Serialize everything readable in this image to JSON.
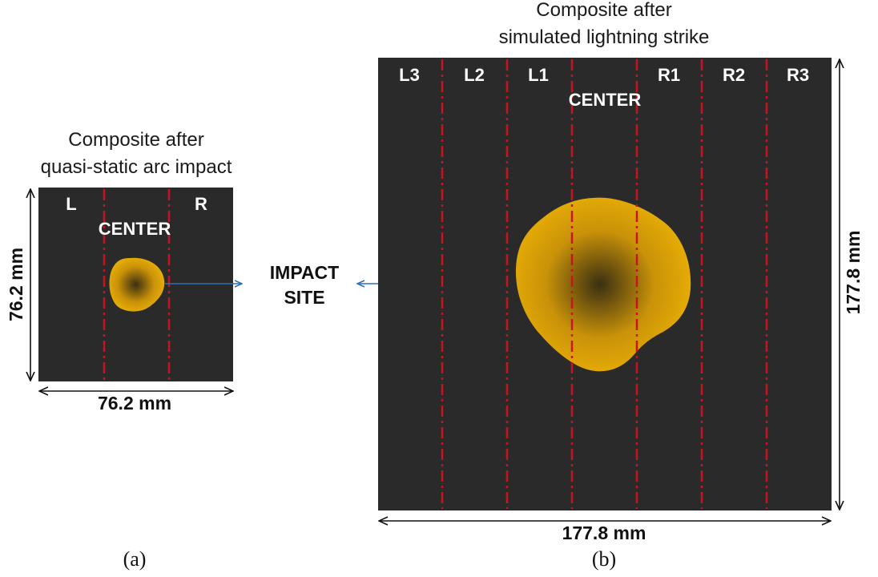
{
  "panel_a": {
    "title_line1": "Composite after",
    "title_line2": "quasi-static arc impact",
    "zones": {
      "left": "L",
      "right": "R",
      "center": "CENTER"
    },
    "width_label": "76.2 mm",
    "height_label": "76.2 mm",
    "caption": "(a)"
  },
  "panel_b": {
    "title_line1": "Composite after",
    "title_line2": "simulated lightning strike",
    "zones": [
      "L3",
      "L2",
      "L1",
      "R1",
      "R2",
      "R3"
    ],
    "center": "CENTER",
    "width_label": "177.8 mm",
    "height_label": "177.8 mm",
    "caption": "(b)"
  },
  "impact_label": {
    "line1": "IMPACT",
    "line2": "SITE"
  },
  "colors": {
    "panel": "#2a2a2a",
    "dash": "#c8141e",
    "impact_outer": "#f2b705",
    "impact_center": "#3a2f12",
    "arrow": "#2f6fb3"
  }
}
